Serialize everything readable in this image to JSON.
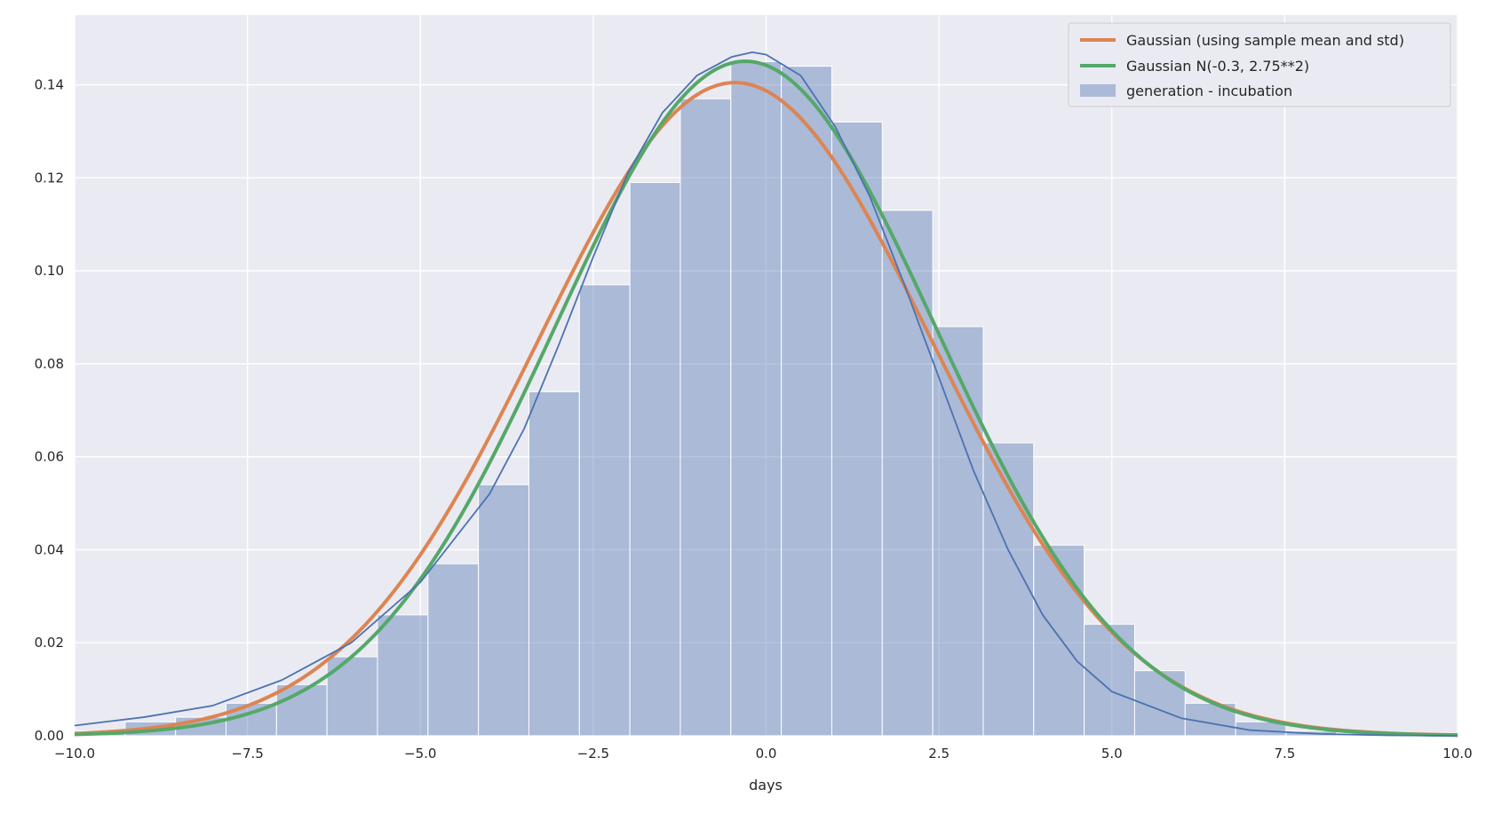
{
  "chart_data": {
    "type": "bar",
    "title": "",
    "xlabel": "days",
    "ylabel": "",
    "xlim": [
      -10,
      10
    ],
    "ylim": [
      0,
      0.155
    ],
    "grid": true,
    "legend_position": "top-right",
    "x_ticks": [
      -10,
      -7.5,
      -5,
      -2.5,
      0,
      2.5,
      5,
      7.5,
      10
    ],
    "x_tick_labels": [
      "−10.0",
      "−7.5",
      "−5.0",
      "−2.5",
      "0.0",
      "2.5",
      "5.0",
      "7.5",
      "10.0"
    ],
    "y_ticks": [
      0,
      0.02,
      0.04,
      0.06,
      0.08,
      0.1,
      0.12,
      0.14
    ],
    "y_tick_labels": [
      "0.00",
      "0.02",
      "0.04",
      "0.06",
      "0.08",
      "0.10",
      "0.12",
      "0.14"
    ],
    "histogram": {
      "name": "generation - incubation",
      "color": "#4c72b0",
      "bin_edges": [
        -10.0,
        -9.27,
        -8.54,
        -7.81,
        -7.08,
        -6.35,
        -5.62,
        -4.89,
        -4.16,
        -3.43,
        -2.7,
        -1.97,
        -1.24,
        -0.51,
        0.22,
        0.95,
        1.68,
        2.41,
        3.14,
        3.87,
        4.6,
        5.33,
        6.06,
        6.79,
        7.52,
        8.25,
        8.98,
        9.71
      ],
      "values": [
        0.001,
        0.003,
        0.004,
        0.007,
        0.011,
        0.017,
        0.026,
        0.037,
        0.054,
        0.074,
        0.097,
        0.119,
        0.137,
        0.145,
        0.144,
        0.132,
        0.113,
        0.088,
        0.063,
        0.041,
        0.024,
        0.014,
        0.007,
        0.003,
        0.001,
        0.0005,
        0.0002
      ]
    },
    "series": [
      {
        "name": "Gaussian (using sample mean and std)",
        "type": "line",
        "color": "#dd8452",
        "mean": -0.45,
        "std": 2.84
      },
      {
        "name": "Gaussian N(-0.3, 2.75**2)",
        "type": "line",
        "color": "#55a868",
        "mean": -0.3,
        "std": 2.75
      },
      {
        "name": "",
        "type": "kde",
        "color": "#4c72b0",
        "x": [
          -10,
          -9,
          -8,
          -7,
          -6,
          -5,
          -4,
          -3.5,
          -3,
          -2.5,
          -2,
          -1.5,
          -1,
          -0.5,
          -0.2,
          0,
          0.5,
          1,
          1.5,
          2,
          2.5,
          3,
          3.5,
          4,
          4.5,
          5,
          6,
          7,
          8,
          9,
          10
        ],
        "y": [
          0.0022,
          0.004,
          0.0065,
          0.012,
          0.02,
          0.033,
          0.052,
          0.066,
          0.084,
          0.103,
          0.121,
          0.134,
          0.142,
          0.146,
          0.147,
          0.1465,
          0.142,
          0.131,
          0.116,
          0.097,
          0.077,
          0.057,
          0.04,
          0.026,
          0.016,
          0.0095,
          0.0038,
          0.0012,
          0.0004,
          0.0001,
          0.0
        ]
      }
    ]
  }
}
